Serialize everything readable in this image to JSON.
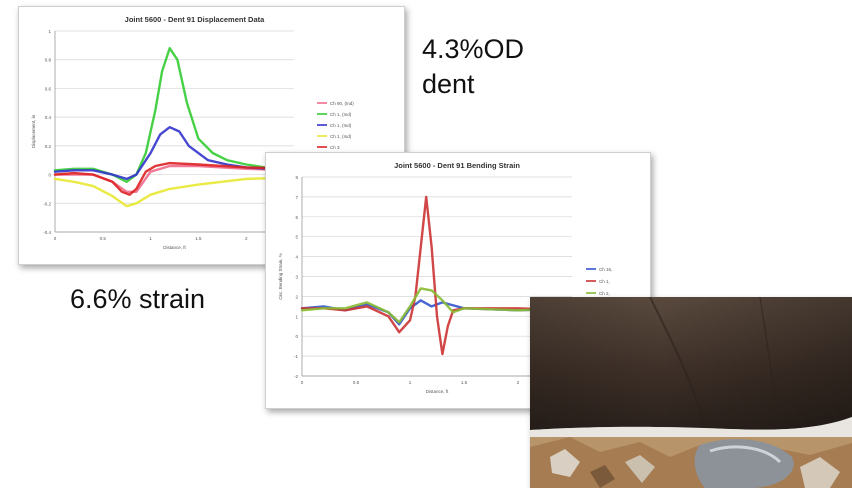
{
  "slide": {
    "dent_text_line1": "4.3%OD",
    "dent_text_line2": "dent",
    "strain_text": "6.6% strain"
  },
  "chart_data": [
    {
      "type": "line",
      "title": "Joint 5600 - Dent 91  Displacement Data",
      "xlabel": "Distance, ft",
      "ylabel": "Displacement, in",
      "xlim": [
        0,
        2.5
      ],
      "ylim": [
        -0.4,
        1
      ],
      "x_ticks": [
        "0",
        "0.5",
        "1",
        "1.5",
        "2"
      ],
      "y_ticks": [
        "1",
        "0.8",
        "0.6",
        "0.4",
        "0.2",
        "0",
        "-0.2",
        "-0.4"
      ],
      "grid": true,
      "legend_position": "right",
      "series": [
        {
          "name": "Ch 90, (Ind)",
          "color": "#f06a8a",
          "x": [
            0.0,
            0.2,
            0.4,
            0.6,
            0.75,
            0.85,
            1.0,
            1.2,
            1.5,
            2.0,
            2.5
          ],
          "y": [
            0.0,
            0.0,
            0.0,
            -0.05,
            -0.12,
            -0.12,
            0.02,
            0.06,
            0.06,
            0.04,
            0.03
          ]
        },
        {
          "name": "Ch 1, (Ind)",
          "color": "#33cc33",
          "x": [
            0.0,
            0.2,
            0.4,
            0.6,
            0.75,
            0.85,
            0.95,
            1.05,
            1.12,
            1.2,
            1.28,
            1.38,
            1.5,
            1.65,
            1.8,
            2.0,
            2.2,
            2.5
          ],
          "y": [
            0.03,
            0.04,
            0.04,
            0.0,
            -0.05,
            0.0,
            0.15,
            0.45,
            0.72,
            0.88,
            0.8,
            0.5,
            0.25,
            0.15,
            0.1,
            0.07,
            0.05,
            0.04
          ]
        },
        {
          "name": "Ch 1, (Ind)",
          "color": "#3333cc",
          "x": [
            0.0,
            0.2,
            0.4,
            0.6,
            0.75,
            0.85,
            1.0,
            1.1,
            1.2,
            1.3,
            1.4,
            1.6,
            1.8,
            2.0,
            2.5
          ],
          "y": [
            0.02,
            0.03,
            0.03,
            0.0,
            -0.03,
            0.0,
            0.15,
            0.28,
            0.33,
            0.3,
            0.2,
            0.1,
            0.07,
            0.05,
            0.03
          ]
        },
        {
          "name": "Ch 1, (Ind)",
          "color": "#e8e830",
          "x": [
            0.0,
            0.2,
            0.4,
            0.6,
            0.75,
            0.85,
            1.0,
            1.2,
            1.5,
            2.0,
            2.5
          ],
          "y": [
            -0.03,
            -0.05,
            -0.08,
            -0.15,
            -0.22,
            -0.2,
            -0.14,
            -0.1,
            -0.07,
            -0.03,
            -0.02
          ]
        },
        {
          "name": "Ch 3",
          "color": "#dd2222",
          "x": [
            0.0,
            0.2,
            0.4,
            0.6,
            0.7,
            0.78,
            0.85,
            0.95,
            1.05,
            1.2,
            1.5,
            2.0,
            2.5
          ],
          "y": [
            0.0,
            0.01,
            0.0,
            -0.05,
            -0.12,
            -0.14,
            -0.1,
            0.02,
            0.06,
            0.08,
            0.07,
            0.05,
            0.04
          ]
        }
      ]
    },
    {
      "type": "line",
      "title": "Joint 5600 - Dent 91  Bending Strain",
      "xlabel": "Distance, ft",
      "ylabel": "Circ. Bending Strain, %",
      "xlim": [
        0,
        2.5
      ],
      "ylim": [
        -2,
        8
      ],
      "x_ticks": [
        "0",
        "0.5",
        "1",
        "1.5",
        "2"
      ],
      "y_ticks": [
        "8",
        "7",
        "6",
        "5",
        "4",
        "3",
        "2",
        "1",
        "0",
        "-1",
        "-2"
      ],
      "grid": true,
      "legend_position": "right",
      "series": [
        {
          "name": "Ch 16,",
          "color": "#3355cc",
          "x": [
            0.0,
            0.2,
            0.4,
            0.6,
            0.8,
            0.9,
            1.0,
            1.1,
            1.2,
            1.3,
            1.5,
            2.0,
            2.5
          ],
          "y": [
            1.4,
            1.5,
            1.3,
            1.6,
            1.2,
            0.6,
            1.4,
            1.8,
            1.5,
            1.7,
            1.4,
            1.3,
            1.4
          ]
        },
        {
          "name": "Ch 1,",
          "color": "#cc3333",
          "x": [
            0.0,
            0.2,
            0.4,
            0.6,
            0.8,
            0.9,
            1.0,
            1.05,
            1.1,
            1.15,
            1.2,
            1.25,
            1.3,
            1.35,
            1.4,
            1.5,
            2.0,
            2.5
          ],
          "y": [
            1.4,
            1.4,
            1.3,
            1.5,
            1.0,
            0.2,
            0.8,
            2.0,
            4.5,
            7.0,
            4.5,
            1.0,
            -0.9,
            0.5,
            1.3,
            1.4,
            1.4,
            1.3
          ]
        },
        {
          "name": "Ch 2,",
          "color": "#88bb33",
          "x": [
            0.0,
            0.2,
            0.4,
            0.6,
            0.8,
            0.9,
            1.0,
            1.1,
            1.2,
            1.3,
            1.4,
            1.5,
            2.0,
            2.5
          ],
          "y": [
            1.3,
            1.4,
            1.4,
            1.7,
            1.2,
            0.7,
            1.5,
            2.4,
            2.3,
            1.8,
            1.2,
            1.4,
            1.3,
            1.4
          ]
        }
      ]
    }
  ]
}
